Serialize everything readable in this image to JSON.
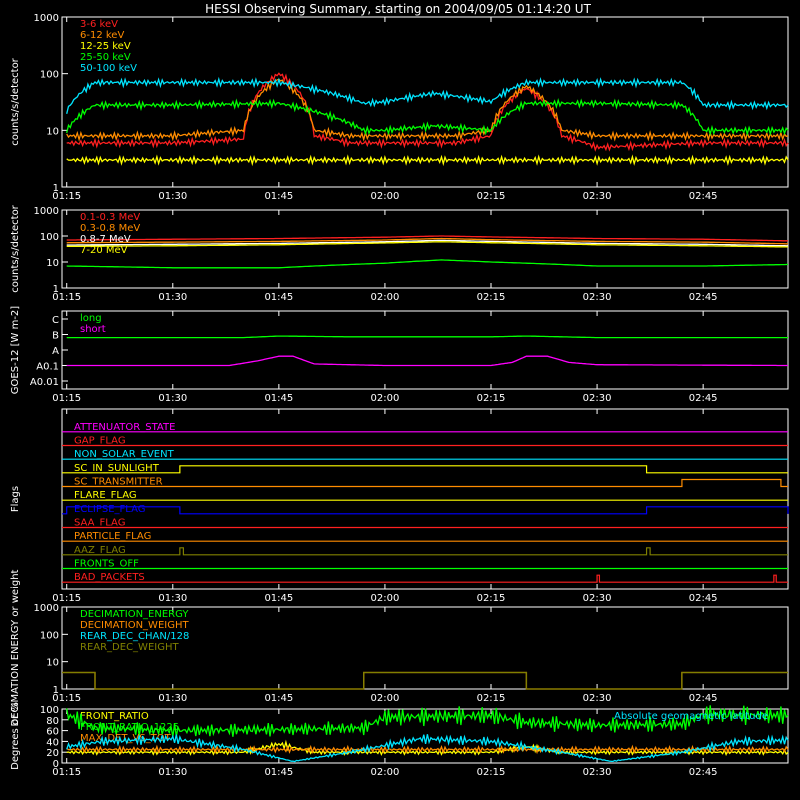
{
  "figure": {
    "title": "HESSI Observing Summary, starting on 2004/09/05 01:14:20 UT",
    "background": "#000000",
    "foreground": "#ffffff"
  },
  "time_ticks": [
    "01:15",
    "01:30",
    "01:45",
    "02:00",
    "02:15",
    "02:30",
    "02:45"
  ],
  "chart_data": [
    {
      "id": "panel1",
      "type": "line",
      "ylabel": "counts/s/detector",
      "yscale": "log",
      "ylim": [
        1,
        1000
      ],
      "yticks": [
        "1",
        "10",
        "100",
        "1000"
      ],
      "xlim": [
        "01:14:20",
        "02:57:00"
      ],
      "series": [
        {
          "name": "3-6 keV",
          "color": "#ff2020",
          "x": [
            "01:15",
            "01:30",
            "01:40",
            "01:45",
            "01:50",
            "01:55",
            "02:00",
            "02:10",
            "02:15",
            "02:20",
            "02:25",
            "02:30",
            "02:45",
            "02:57"
          ],
          "values": [
            6,
            6,
            7,
            100,
            8,
            6,
            6,
            6,
            8,
            55,
            8,
            5,
            6,
            6
          ]
        },
        {
          "name": "6-12 keV",
          "color": "#ff8c00",
          "x": [
            "01:15",
            "01:30",
            "01:40",
            "01:45",
            "01:50",
            "01:55",
            "02:00",
            "02:10",
            "02:15",
            "02:20",
            "02:25",
            "02:30",
            "02:45",
            "02:57"
          ],
          "values": [
            8,
            8,
            10,
            80,
            10,
            8,
            8,
            8,
            10,
            60,
            10,
            8,
            8,
            8
          ]
        },
        {
          "name": "12-25 keV",
          "color": "#ffff00",
          "x": [
            "01:15",
            "01:30",
            "01:45",
            "02:00",
            "02:15",
            "02:30",
            "02:45",
            "02:57"
          ],
          "values": [
            3,
            3,
            3,
            3,
            3,
            3,
            3,
            3
          ]
        },
        {
          "name": "25-50 keV",
          "color": "#00ff00",
          "x": [
            "01:15",
            "01:19",
            "01:30",
            "01:45",
            "01:57",
            "02:00",
            "02:07",
            "02:15",
            "02:20",
            "02:30",
            "02:42",
            "02:45",
            "02:57"
          ],
          "values": [
            10,
            28,
            28,
            30,
            10,
            10,
            12,
            10,
            30,
            30,
            28,
            10,
            10
          ]
        },
        {
          "name": "50-100 keV",
          "color": "#00e5ff",
          "x": [
            "01:15",
            "01:19",
            "01:30",
            "01:45",
            "01:57",
            "02:00",
            "02:07",
            "02:15",
            "02:20",
            "02:30",
            "02:42",
            "02:45",
            "02:57"
          ],
          "values": [
            22,
            70,
            70,
            70,
            30,
            32,
            45,
            32,
            70,
            70,
            70,
            28,
            28
          ]
        }
      ]
    },
    {
      "id": "panel2",
      "type": "line",
      "ylabel": "counts/s/detector",
      "yscale": "log",
      "ylim": [
        1,
        1000
      ],
      "yticks": [
        "1",
        "10",
        "100",
        "1000"
      ],
      "xlim": [
        "01:14:20",
        "02:57:00"
      ],
      "series": [
        {
          "name": "0.1-0.3 MeV",
          "color": "#ff2020",
          "x": [
            "01:15",
            "01:30",
            "01:45",
            "02:00",
            "02:08",
            "02:15",
            "02:30",
            "02:45",
            "02:57"
          ],
          "values": [
            70,
            75,
            80,
            90,
            100,
            92,
            80,
            75,
            65
          ]
        },
        {
          "name": "0.3-0.8 MeV",
          "color": "#ff8c00",
          "x": [
            "01:15",
            "01:30",
            "01:45",
            "02:00",
            "02:08",
            "02:15",
            "02:30",
            "02:45",
            "02:57"
          ],
          "values": [
            55,
            58,
            62,
            70,
            80,
            72,
            62,
            58,
            50
          ]
        },
        {
          "name": "0.8-7 MeV",
          "color": "#ffffff",
          "x": [
            "01:15",
            "01:30",
            "01:45",
            "02:00",
            "02:08",
            "02:15",
            "02:30",
            "02:45",
            "02:57"
          ],
          "values": [
            45,
            48,
            52,
            60,
            68,
            62,
            52,
            48,
            42
          ]
        },
        {
          "name": "7-20 MeV",
          "color": "#ffff00",
          "x": [
            "01:15",
            "01:30",
            "01:45",
            "02:00",
            "02:08",
            "02:15",
            "02:30",
            "02:45",
            "02:57"
          ],
          "values": [
            40,
            42,
            46,
            54,
            60,
            55,
            46,
            42,
            38
          ]
        },
        {
          "name": "",
          "color": "#00ff00",
          "x": [
            "01:15",
            "01:30",
            "01:45",
            "02:00",
            "02:08",
            "02:15",
            "02:30",
            "02:45",
            "02:57"
          ],
          "values": [
            7,
            6,
            6,
            9,
            12,
            10,
            7,
            7,
            8
          ]
        }
      ]
    },
    {
      "id": "panel3",
      "type": "line",
      "ylabel": "GOES-12 [W m-2]",
      "yticks": [
        "A0.01",
        "A0.1",
        "A",
        "B",
        "C"
      ],
      "yscale": "log-class",
      "ylim": [
        0,
        4
      ],
      "xlim": [
        "01:14:20",
        "02:57:00"
      ],
      "series": [
        {
          "name": "long",
          "color": "#00ff00",
          "x": [
            "01:15",
            "01:40",
            "01:45",
            "01:55",
            "02:15",
            "02:20",
            "02:30",
            "02:57"
          ],
          "values": [
            2.8,
            2.8,
            2.9,
            2.85,
            2.85,
            2.9,
            2.8,
            2.8
          ]
        },
        {
          "name": "short",
          "color": "#ff00ff",
          "x": [
            "01:15",
            "01:38",
            "01:42",
            "01:45",
            "01:47",
            "01:50",
            "02:00",
            "02:15",
            "02:18",
            "02:20",
            "02:23",
            "02:26",
            "02:30",
            "02:57"
          ],
          "values": [
            1.0,
            1.0,
            1.3,
            1.6,
            1.6,
            1.1,
            1.0,
            1.0,
            1.2,
            1.6,
            1.6,
            1.2,
            1.05,
            1.0
          ]
        }
      ]
    },
    {
      "id": "panel4",
      "type": "line",
      "ylabel": "Flags",
      "xlim": [
        "01:14:20",
        "02:57:00"
      ],
      "flags": [
        {
          "name": "ATTENUATOR_STATE",
          "color": "#ff00ff",
          "segments": []
        },
        {
          "name": "GAP_FLAG",
          "color": "#ff2020",
          "segments": []
        },
        {
          "name": "NON_SOLAR_EVENT",
          "color": "#00e5ff",
          "segments": []
        },
        {
          "name": "SC_IN_SUNLIGHT",
          "color": "#ffff00",
          "segments": [
            [
              "01:31",
              "02:37"
            ]
          ]
        },
        {
          "name": "SC_TRANSMITTER",
          "color": "#ff8c00",
          "segments": [
            [
              "02:42",
              "02:56"
            ]
          ]
        },
        {
          "name": "FLARE_FLAG",
          "color": "#ffff00",
          "segments": []
        },
        {
          "name": "ECLIPSE_FLAG",
          "color": "#0000ff",
          "segments": [
            [
              "01:15",
              "01:31"
            ],
            [
              "02:37",
              "02:57"
            ]
          ]
        },
        {
          "name": "SAA_FLAG",
          "color": "#ff2020",
          "segments": []
        },
        {
          "name": "PARTICLE_FLAG",
          "color": "#ff8c00",
          "segments": []
        },
        {
          "name": "AAZ_FLAG",
          "color": "#808000",
          "segments": [
            [
              "01:31",
              "01:31:30"
            ],
            [
              "02:37",
              "02:37:30"
            ]
          ]
        },
        {
          "name": "FRONTS_OFF",
          "color": "#00ff00",
          "segments": []
        },
        {
          "name": "BAD_PACKETS",
          "color": "#ff2020",
          "segments": [
            [
              "02:30",
              "02:30:20"
            ],
            [
              "02:55",
              "02:55:20"
            ]
          ]
        }
      ]
    },
    {
      "id": "panel5",
      "type": "line",
      "ylabel": "DECIMATION ENERGY or weight",
      "yscale": "log",
      "ylim": [
        1,
        1000
      ],
      "yticks": [
        "1",
        "10",
        "100",
        "1000"
      ],
      "xlim": [
        "01:14:20",
        "02:57:00"
      ],
      "series": [
        {
          "name": "DECIMATION_ENERGY",
          "color": "#00ff00",
          "x": [],
          "values": []
        },
        {
          "name": "DECIMATION_WEIGHT",
          "color": "#ff8c00",
          "x": [
            "01:14:20",
            "01:19",
            "01:19",
            "01:57",
            "01:57",
            "02:20",
            "02:20",
            "02:42",
            "02:42",
            "02:57"
          ],
          "values": [
            4,
            4,
            1,
            1,
            4,
            4,
            1,
            1,
            4,
            4
          ]
        },
        {
          "name": "REAR_DEC_CHAN/128",
          "color": "#00e5ff",
          "x": [],
          "values": []
        },
        {
          "name": "REAR_DEC_WEIGHT",
          "color": "#808000",
          "x": [
            "01:14:20",
            "01:19",
            "01:19",
            "01:57",
            "01:57",
            "02:20",
            "02:20",
            "02:42",
            "02:42",
            "02:57"
          ],
          "values": [
            4,
            4,
            1,
            1,
            4,
            4,
            1,
            1,
            4,
            4
          ]
        }
      ]
    },
    {
      "id": "panel6",
      "type": "line",
      "ylabel": "Degrees or %",
      "ylim": [
        0,
        100
      ],
      "yticks": [
        "0",
        "20",
        "40",
        "60",
        "80",
        "100"
      ],
      "xlim": [
        "01:14:20",
        "02:57:00"
      ],
      "annotation": "Absolute geomagnetic latitude",
      "series": [
        {
          "name": "FRONT_RATIO",
          "color": "#ffff00",
          "x": [
            "01:15",
            "01:40",
            "01:45",
            "01:50",
            "02:15",
            "02:20",
            "02:25",
            "02:57"
          ],
          "values": [
            20,
            20,
            35,
            20,
            20,
            30,
            20,
            20
          ]
        },
        {
          "name": "FRONT_RATIO_1225",
          "color": "#00ff00",
          "x": [
            "01:15",
            "01:19",
            "01:30",
            "01:45",
            "01:57",
            "02:00",
            "02:15",
            "02:20",
            "02:30",
            "02:42",
            "02:45",
            "02:57"
          ],
          "values": [
            90,
            65,
            60,
            62,
            65,
            85,
            88,
            75,
            70,
            72,
            90,
            88
          ]
        },
        {
          "name": "MAX_DET_VS_TOT",
          "color": "#ff8c00",
          "x": [
            "01:15",
            "01:30",
            "01:45",
            "02:00",
            "02:15",
            "02:30",
            "02:45",
            "02:57"
          ],
          "values": [
            25,
            25,
            25,
            25,
            25,
            25,
            25,
            25
          ]
        },
        {
          "name": "Absolute geomagnetic latitude",
          "color": "#00e5ff",
          "x": [
            "01:15",
            "01:20",
            "01:30",
            "01:40",
            "01:47",
            "01:55",
            "02:05",
            "02:15",
            "02:25",
            "02:32",
            "02:42",
            "02:50",
            "02:57"
          ],
          "values": [
            30,
            40,
            45,
            25,
            3,
            20,
            45,
            40,
            20,
            3,
            20,
            40,
            42
          ]
        }
      ]
    }
  ]
}
